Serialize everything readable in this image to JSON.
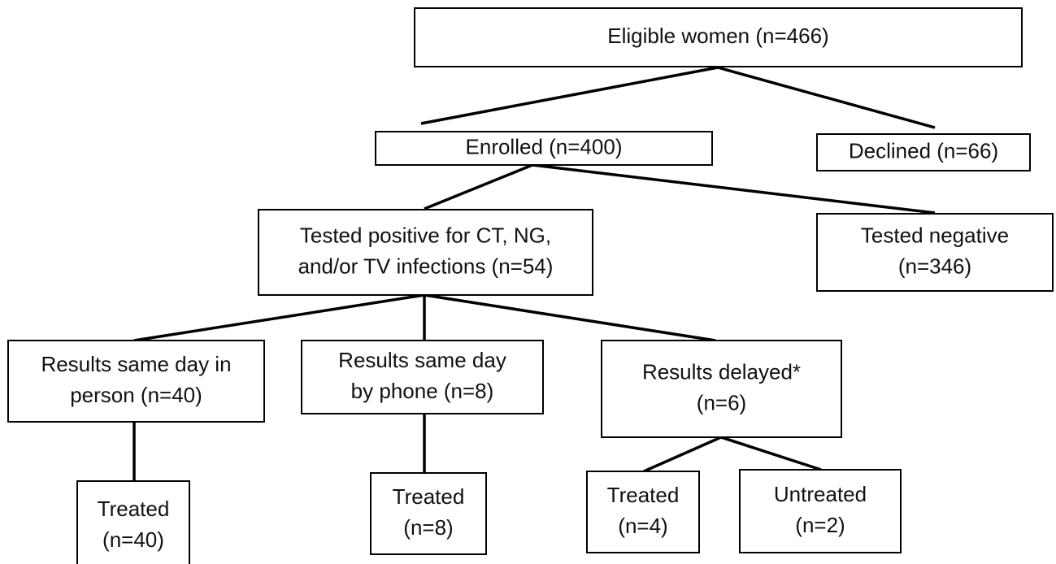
{
  "nodes": [
    {
      "lines": [
        "Eligible women (n=466)"
      ]
    },
    {
      "lines": [
        "Enrolled (n=400)"
      ]
    },
    {
      "lines": [
        "Declined (n=66)"
      ]
    },
    {
      "lines": [
        "Tested positive for CT, NG,",
        "and/or TV infections (n=54)"
      ]
    },
    {
      "lines": [
        "Tested negative",
        "(n=346)"
      ]
    },
    {
      "lines": [
        "Results same day in",
        "person (n=40)"
      ]
    },
    {
      "lines": [
        "Results same day",
        "by phone (n=8)"
      ]
    },
    {
      "lines": [
        "Results delayed*",
        "(n=6)"
      ]
    },
    {
      "lines": [
        "Treated",
        "(n=40)"
      ]
    },
    {
      "lines": [
        "Treated",
        "(n=8)"
      ]
    },
    {
      "lines": [
        "Treated",
        "(n=4)"
      ]
    },
    {
      "lines": [
        "Untreated",
        "(n=2)"
      ]
    }
  ]
}
